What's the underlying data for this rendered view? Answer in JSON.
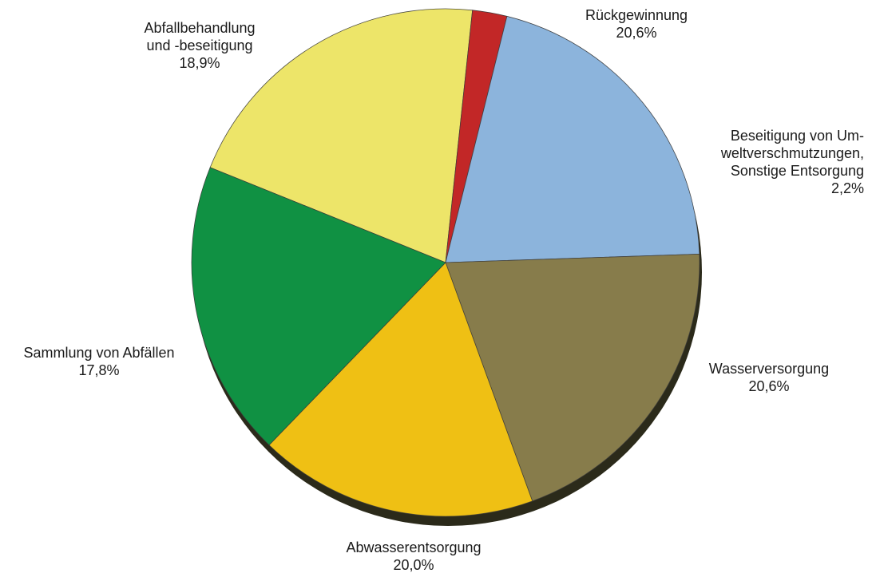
{
  "chart_data": {
    "type": "pie",
    "title": "",
    "value_unit": "%",
    "slices": [
      {
        "label_lines": [
          "Rückgewinnung"
        ],
        "value": 20.6,
        "value_label": "20,6%",
        "color": "#f2ea6b"
      },
      {
        "label_lines": [
          "Beseitigung von Um-",
          "weltverschmutzungen,",
          "Sonstige Entsorgung"
        ],
        "value": 2.2,
        "value_label": "2,2%",
        "color": "#c62828"
      },
      {
        "label_lines": [
          "Wasserversorgung"
        ],
        "value": 20.6,
        "value_label": "20,6%",
        "color": "#8fb8e0"
      },
      {
        "label_lines": [
          "Abwasserentsorgung"
        ],
        "value": 20.0,
        "value_label": "20,0%",
        "color": "#8a7f4c"
      },
      {
        "label_lines": [
          "Sammlung von Abfällen"
        ],
        "value": 17.8,
        "value_label": "17,8%",
        "color": "#f4c414"
      },
      {
        "label_lines": [
          "Abfallbehandlung",
          "und -beseitigung"
        ],
        "value": 18.9,
        "value_label": "18,9%",
        "color": "#119545"
      }
    ]
  }
}
